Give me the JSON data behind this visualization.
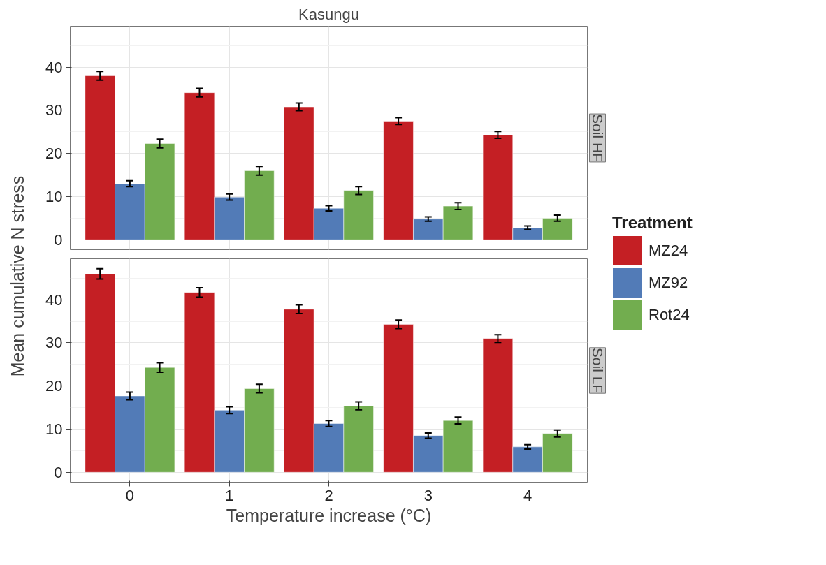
{
  "chart_data": [
    {
      "type": "bar",
      "title": "Kasungu",
      "subtitle": "Soil HF",
      "ylabel": "Mean cumulative N stress",
      "categories": [
        "0",
        "1",
        "2",
        "3",
        "4"
      ],
      "ylim": [
        -2.3,
        49.5
      ],
      "yticks": [
        0,
        10,
        20,
        30,
        40
      ],
      "grid": true,
      "tick_labels": "y",
      "series": [
        {
          "color": "#c41f24",
          "values": [
            38,
            34.1,
            30.8,
            27.5,
            24.3
          ],
          "errors": [
            1,
            1,
            0.9,
            0.8,
            0.8
          ]
        },
        {
          "color": "#527bb7",
          "values": [
            13,
            9.9,
            7.3,
            4.8,
            2.8
          ],
          "errors": [
            0.7,
            0.7,
            0.6,
            0.5,
            0.4
          ]
        },
        {
          "color": "#72ad4f",
          "values": [
            22.3,
            16,
            11.4,
            7.8,
            5
          ],
          "errors": [
            1,
            1,
            0.9,
            0.8,
            0.7
          ]
        }
      ]
    },
    {
      "type": "bar",
      "subtitle": "Soil LF",
      "xlabel": "Temperature increase (°C)",
      "legend_title": "Treatment",
      "legend": "right",
      "categories": [
        "0",
        "1",
        "2",
        "3",
        "4"
      ],
      "ylim": [
        -2.3,
        49.5
      ],
      "yticks": [
        0,
        10,
        20,
        30,
        40
      ],
      "grid": true,
      "series": [
        {
          "name": "MZ24",
          "color": "#c41f24",
          "values": [
            46,
            41.7,
            37.8,
            34.3,
            31
          ],
          "errors": [
            1.2,
            1.1,
            1,
            1,
            0.9
          ]
        },
        {
          "name": "MZ92",
          "color": "#527bb7",
          "values": [
            17.7,
            14.4,
            11.3,
            8.5,
            5.9
          ],
          "errors": [
            0.9,
            0.8,
            0.7,
            0.6,
            0.5
          ]
        },
        {
          "name": "Rot24",
          "color": "#72ad4f",
          "values": [
            24.3,
            19.4,
            15.4,
            12,
            9
          ],
          "errors": [
            1.1,
            1,
            0.9,
            0.8,
            0.8
          ]
        }
      ]
    }
  ]
}
